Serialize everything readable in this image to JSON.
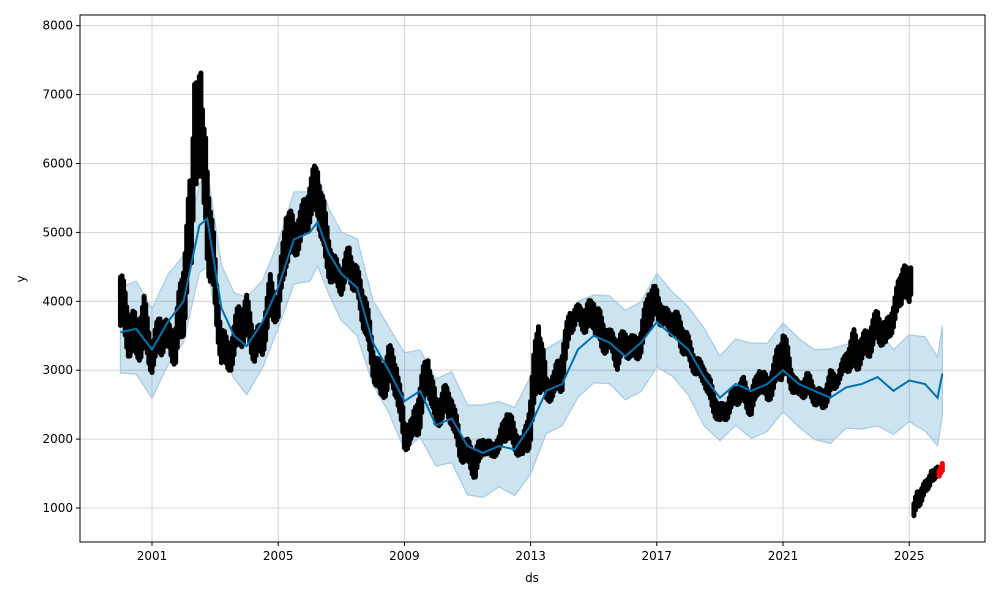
{
  "chart_data": {
    "type": "scatter",
    "xlabel": "ds",
    "ylabel": "y",
    "xlim": [
      1999.8,
      2026.6
    ],
    "ylim": [
      520,
      8170
    ],
    "xticks": [
      2001,
      2005,
      2009,
      2013,
      2017,
      2021,
      2025
    ],
    "yticks": [
      1000,
      2000,
      3000,
      4000,
      5000,
      6000,
      7000,
      8000
    ],
    "grid": true,
    "colors": {
      "observed": "#000000",
      "forecast": "#0072b2",
      "interval": "#0072b2",
      "recent": "#ff0000"
    },
    "observed_ranges": [
      [
        2000.0,
        3500,
        4500
      ],
      [
        2000.25,
        3200,
        4000
      ],
      [
        2000.5,
        3100,
        3800
      ],
      [
        2000.75,
        3200,
        4100
      ],
      [
        2001.0,
        2950,
        3400
      ],
      [
        2001.25,
        3200,
        3900
      ],
      [
        2001.5,
        3300,
        3700
      ],
      [
        2001.75,
        3000,
        3700
      ],
      [
        2002.0,
        3500,
        4800
      ],
      [
        2002.25,
        4500,
        6000
      ],
      [
        2002.4,
        5700,
        7800
      ],
      [
        2002.6,
        5800,
        7200
      ],
      [
        2002.75,
        4500,
        6300
      ],
      [
        2003.0,
        3800,
        4700
      ],
      [
        2003.2,
        3000,
        3600
      ],
      [
        2003.5,
        3000,
        3500
      ],
      [
        2003.75,
        3300,
        4000
      ],
      [
        2004.0,
        3400,
        4100
      ],
      [
        2004.25,
        3100,
        3600
      ],
      [
        2004.5,
        3200,
        3700
      ],
      [
        2004.75,
        3700,
        4400
      ],
      [
        2005.0,
        3700,
        4100
      ],
      [
        2005.25,
        4500,
        5500
      ],
      [
        2005.5,
        4600,
        5200
      ],
      [
        2005.75,
        4800,
        5400
      ],
      [
        2006.0,
        5100,
        5800
      ],
      [
        2006.25,
        5200,
        6100
      ],
      [
        2006.5,
        4400,
        5300
      ],
      [
        2006.75,
        4200,
        4700
      ],
      [
        2007.0,
        4100,
        4500
      ],
      [
        2007.25,
        4300,
        4850
      ],
      [
        2007.5,
        4000,
        4500
      ],
      [
        2007.75,
        3500,
        4200
      ],
      [
        2008.0,
        2900,
        3400
      ],
      [
        2008.25,
        2500,
        3100
      ],
      [
        2008.5,
        2700,
        3400
      ],
      [
        2008.75,
        2600,
        3200
      ],
      [
        2009.0,
        1800,
        2300
      ],
      [
        2009.25,
        1950,
        2300
      ],
      [
        2009.5,
        2100,
        2900
      ],
      [
        2009.75,
        2700,
        3300
      ],
      [
        2010.0,
        2100,
        2600
      ],
      [
        2010.25,
        2300,
        2800
      ],
      [
        2010.5,
        2200,
        2700
      ],
      [
        2010.75,
        1700,
        2100
      ],
      [
        2011.0,
        1600,
        2000
      ],
      [
        2011.25,
        1400,
        1900
      ],
      [
        2011.5,
        1800,
        2050
      ],
      [
        2011.75,
        1700,
        1950
      ],
      [
        2012.0,
        1800,
        2050
      ],
      [
        2012.25,
        2000,
        2500
      ],
      [
        2012.5,
        1800,
        2200
      ],
      [
        2012.75,
        1700,
        2000
      ],
      [
        2013.0,
        1900,
        2700
      ],
      [
        2013.25,
        2700,
        4000
      ],
      [
        2013.5,
        2500,
        2900
      ],
      [
        2013.75,
        2600,
        3000
      ],
      [
        2014.0,
        2700,
        3400
      ],
      [
        2014.25,
        3500,
        3900
      ],
      [
        2014.5,
        3700,
        3950
      ],
      [
        2014.75,
        3500,
        3950
      ],
      [
        2015.0,
        3600,
        4100
      ],
      [
        2015.25,
        3200,
        3800
      ],
      [
        2015.5,
        3300,
        3600
      ],
      [
        2015.75,
        3000,
        3500
      ],
      [
        2016.0,
        3200,
        3600
      ],
      [
        2016.25,
        3100,
        3500
      ],
      [
        2016.5,
        3200,
        3600
      ],
      [
        2016.75,
        3600,
        4300
      ],
      [
        2017.0,
        3700,
        4200
      ],
      [
        2017.25,
        3600,
        3900
      ],
      [
        2017.5,
        3500,
        3900
      ],
      [
        2017.75,
        3300,
        3800
      ],
      [
        2018.0,
        3100,
        3500
      ],
      [
        2018.25,
        2900,
        3200
      ],
      [
        2018.5,
        2800,
        3100
      ],
      [
        2018.75,
        2400,
        2800
      ],
      [
        2019.0,
        2200,
        2500
      ],
      [
        2019.25,
        2300,
        2600
      ],
      [
        2019.5,
        2500,
        2800
      ],
      [
        2019.75,
        2500,
        2900
      ],
      [
        2020.0,
        2300,
        2700
      ],
      [
        2020.25,
        2700,
        3100
      ],
      [
        2020.5,
        2500,
        2900
      ],
      [
        2020.75,
        2700,
        3200
      ],
      [
        2021.0,
        2900,
        3700
      ],
      [
        2021.25,
        2700,
        3100
      ],
      [
        2021.5,
        2600,
        2800
      ],
      [
        2021.75,
        2600,
        3000
      ],
      [
        2022.0,
        2500,
        2800
      ],
      [
        2022.25,
        2400,
        2700
      ],
      [
        2022.5,
        2600,
        3000
      ],
      [
        2022.75,
        2800,
        2950
      ],
      [
        2023.0,
        3000,
        3300
      ],
      [
        2023.25,
        2900,
        3600
      ],
      [
        2023.5,
        3100,
        3500
      ],
      [
        2023.75,
        3200,
        3700
      ],
      [
        2024.0,
        3400,
        3900
      ],
      [
        2024.25,
        3300,
        3700
      ],
      [
        2024.5,
        3600,
        4000
      ],
      [
        2024.75,
        3900,
        4500
      ],
      [
        2025.05,
        4000,
        4550
      ]
    ],
    "observed_recent_ranges": [
      [
        2025.15,
        850,
        1100
      ],
      [
        2025.3,
        1000,
        1300
      ],
      [
        2025.5,
        1200,
        1400
      ],
      [
        2025.75,
        1400,
        1600
      ],
      [
        2025.95,
        1450,
        1600
      ]
    ],
    "red_ranges": [
      [
        2025.95,
        1450,
        1550
      ],
      [
        2026.05,
        1500,
        1650
      ]
    ],
    "forecast": {
      "x": [
        2000,
        2000.5,
        2001,
        2001.5,
        2002,
        2002.5,
        2002.75,
        2003.2,
        2003.6,
        2004,
        2004.5,
        2005,
        2005.5,
        2006,
        2006.25,
        2006.6,
        2007,
        2007.5,
        2008,
        2008.5,
        2009,
        2009.5,
        2010,
        2010.5,
        2011,
        2011.5,
        2012,
        2012.5,
        2013,
        2013.5,
        2014,
        2014.5,
        2015,
        2015.5,
        2016,
        2016.5,
        2017,
        2017.5,
        2018,
        2018.5,
        2019,
        2019.5,
        2020,
        2020.5,
        2021,
        2021.5,
        2022,
        2022.5,
        2023,
        2023.5,
        2024,
        2024.5,
        2025,
        2025.5,
        2025.9,
        2026.05
      ],
      "yhat": [
        3550,
        3600,
        3300,
        3700,
        4000,
        5100,
        5200,
        3900,
        3500,
        3350,
        3700,
        4200,
        4900,
        5000,
        5150,
        4700,
        4400,
        4200,
        3400,
        3000,
        2550,
        2700,
        2200,
        2300,
        1900,
        1800,
        1900,
        1850,
        2200,
        2700,
        2800,
        3300,
        3500,
        3400,
        3200,
        3400,
        3700,
        3500,
        3300,
        2900,
        2600,
        2800,
        2700,
        2800,
        3000,
        2800,
        2700,
        2600,
        2750,
        2800,
        2900,
        2700,
        2850,
        2800,
        2600,
        2950
      ],
      "interval_halfwidth": 650
    }
  }
}
